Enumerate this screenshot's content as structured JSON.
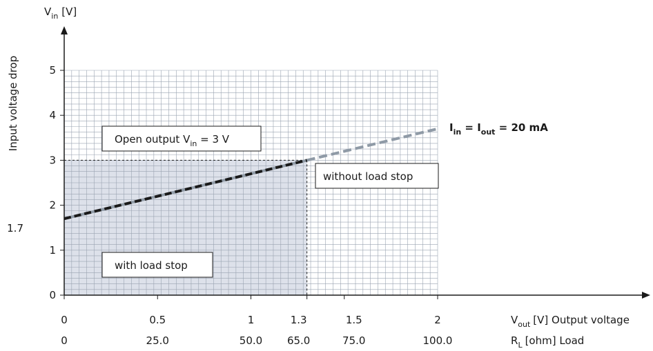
{
  "chart_data": {
    "type": "line",
    "y_axis": {
      "symbol": "V",
      "symbol_sub": "in",
      "unit": "[V]",
      "title": "Input voltage drop",
      "range": [
        0,
        5
      ],
      "ticks": [
        "0",
        "1",
        "1.7",
        "2",
        "3",
        "4",
        "5"
      ]
    },
    "x_axis": {
      "range": [
        0,
        2
      ],
      "ticks": [
        "0",
        "0.5",
        "1",
        "1.3",
        "1.5",
        "2"
      ],
      "label": {
        "symbol": "V",
        "symbol_sub": "out",
        "rest": "[V] Output voltage"
      }
    },
    "x_axis_secondary": {
      "ticks": [
        "0",
        "25.0",
        "50.0",
        "65.0",
        "75.0",
        "100.0"
      ],
      "label": {
        "symbol": "R",
        "symbol_sub": "L",
        "rest": "[ohm] Load"
      }
    },
    "series": [
      {
        "name": "with load stop",
        "x": [
          0,
          1.3
        ],
        "y": [
          1.7,
          3.0
        ],
        "color": "#1a1a1a",
        "style": "dashed-dark"
      },
      {
        "name": "without load stop",
        "x": [
          1.3,
          2.0
        ],
        "y": [
          3.0,
          3.7
        ],
        "color": "#8f9aa6",
        "style": "dashed-gray"
      }
    ],
    "shaded_region": {
      "x": [
        0,
        1.3
      ],
      "y": [
        0,
        3
      ],
      "color": "#dde1ea"
    },
    "reference_lines": {
      "x": 1.3,
      "y": 3
    },
    "grid": true,
    "annotations": {
      "open_output": {
        "text_main": "Open output V",
        "text_sub": "in",
        "text_rest": " = 3 V"
      },
      "without_load_stop": "without load stop",
      "with_load_stop": "with load stop",
      "current": {
        "p1": "I",
        "p1_sub": "in",
        "p2": " = I",
        "p2_sub": "out",
        "p3": " = 20 mA"
      }
    }
  }
}
